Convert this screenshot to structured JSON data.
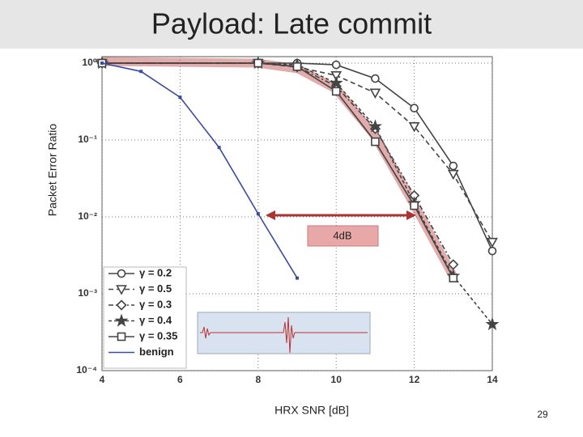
{
  "chart_data": {
    "type": "line",
    "title": "Payload: Late commit",
    "y_label": "Packet Error Ratio",
    "x_label": "HRX SNR [dB]",
    "annotation": "4dB",
    "log_y": true,
    "grid": true,
    "legend": "lower left",
    "xlim": [
      4,
      14
    ],
    "xticks": [
      4,
      6,
      8,
      10,
      12,
      14
    ],
    "ylim": [
      0.0001,
      1
    ],
    "yticks": [
      {
        "value": 0.0001,
        "label": "10⁻⁴"
      },
      {
        "value": 0.001,
        "label": "10⁻³"
      },
      {
        "value": 0.01,
        "label": "10⁻²"
      },
      {
        "value": 0.1,
        "label": "10⁻¹"
      },
      {
        "value": 1,
        "label": "10⁰"
      }
    ],
    "series": [
      {
        "name": "γ = 0.2",
        "color": "#444444",
        "marker": "circle",
        "dash": "",
        "x": [
          4,
          8,
          9,
          10,
          11,
          12,
          13,
          14
        ],
        "values": [
          1,
          1,
          1,
          0.95,
          0.63,
          0.26,
          0.046,
          0.0036
        ]
      },
      {
        "name": "γ = 0.5",
        "color": "#444444",
        "marker": "triangle",
        "dash": "6 4",
        "x": [
          4,
          8,
          9,
          10,
          11,
          12,
          13,
          14
        ],
        "values": [
          1,
          1,
          0.89,
          0.69,
          0.41,
          0.15,
          0.036,
          0.0047
        ]
      },
      {
        "name": "γ = 0.3",
        "color": "#444444",
        "marker": "diamond",
        "dash": "6 3 2 3",
        "x": [
          4,
          8,
          9,
          10,
          11,
          12,
          13
        ],
        "values": [
          1,
          1,
          0.9,
          0.5,
          0.14,
          0.019,
          0.0024
        ]
      },
      {
        "name": "γ = 0.4",
        "color": "#444444",
        "marker": "star",
        "dash": "4 3",
        "x": [
          4,
          8,
          9,
          10,
          11,
          12,
          13,
          14
        ],
        "values": [
          1,
          1,
          0.95,
          0.55,
          0.15,
          0.015,
          0.0017,
          0.0004
        ]
      },
      {
        "name": "γ = 0.35",
        "color": "#444444",
        "marker": "square",
        "dash": "",
        "x": [
          4,
          8,
          9,
          10,
          11,
          12,
          13
        ],
        "values": [
          1,
          1,
          0.9,
          0.43,
          0.095,
          0.014,
          0.0016
        ]
      },
      {
        "name": "benign",
        "color": "#3c4aa0",
        "marker": "none",
        "dash": "",
        "x": [
          4,
          5,
          6,
          7,
          8,
          9
        ],
        "values": [
          1,
          0.78,
          0.36,
          0.08,
          0.011,
          0.0016
        ]
      }
    ]
  },
  "slide_number": "29"
}
